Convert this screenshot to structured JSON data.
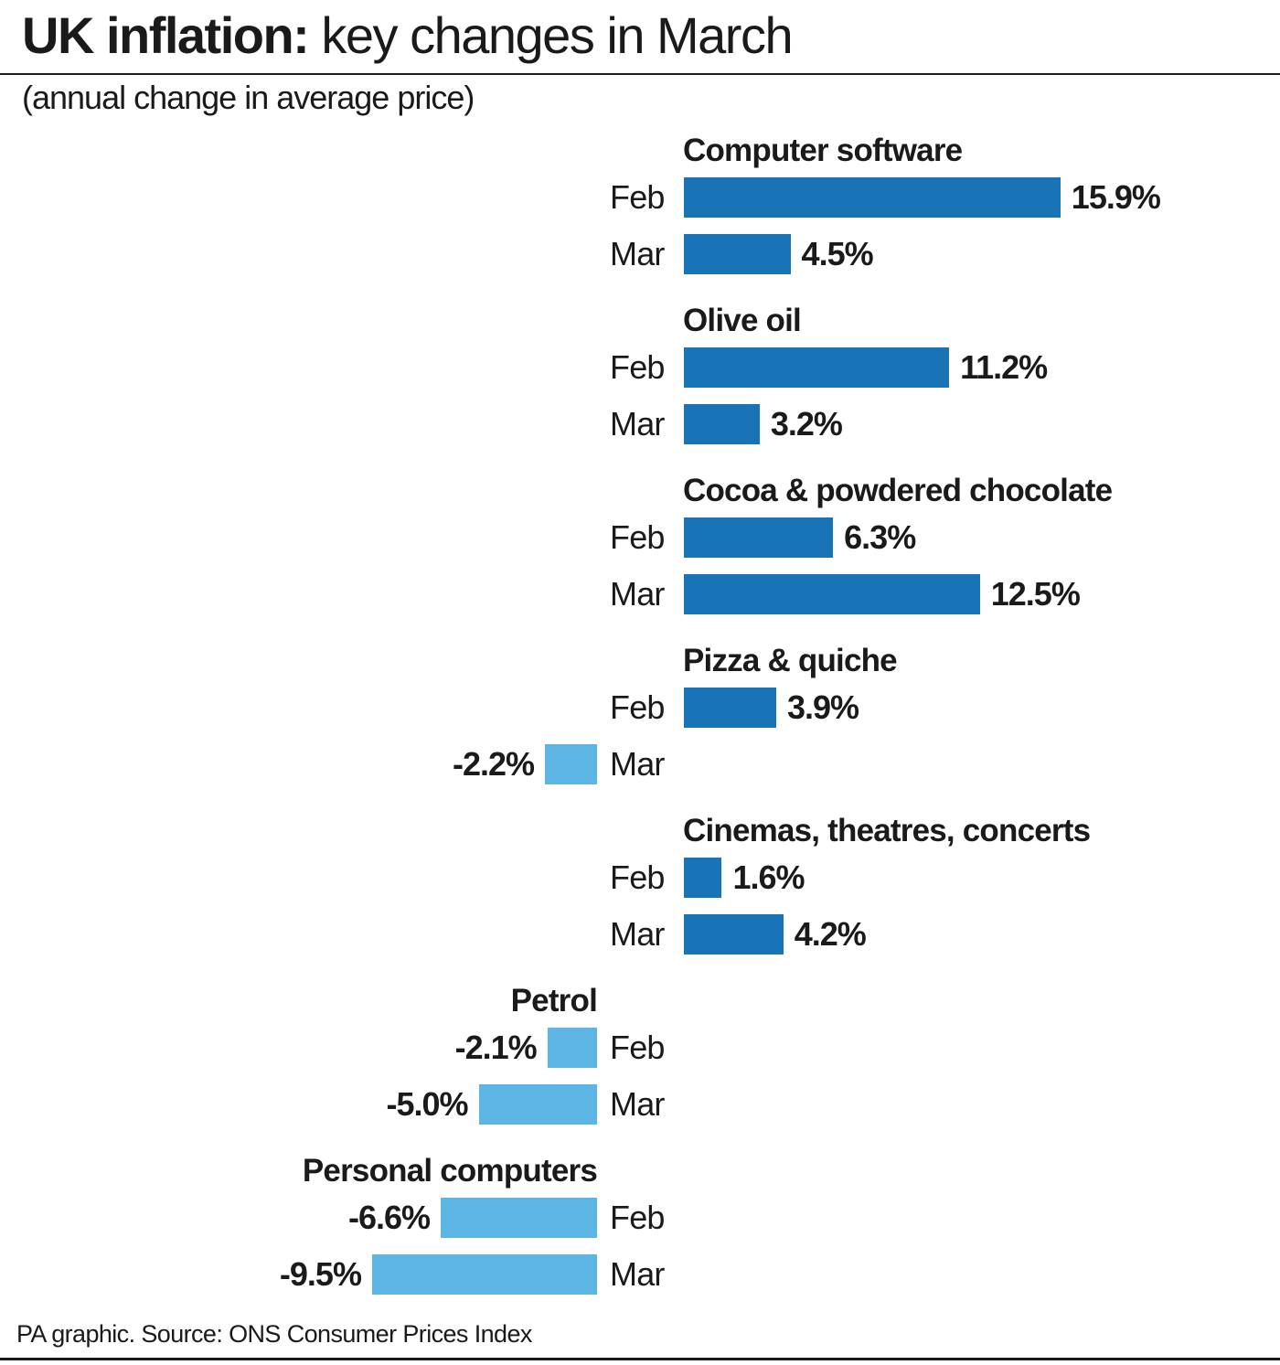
{
  "title_bold": "UK inflation:",
  "title_rest": " key changes in March",
  "subtitle": "(annual change in average price)",
  "footer": "PA graphic. Source: ONS Consumer Prices Index",
  "colors": {
    "positive": "#1874b7",
    "negative": "#5cb5e2"
  },
  "chart_data": {
    "type": "bar",
    "orientation": "horizontal",
    "unit": "%",
    "months": [
      "Feb",
      "Mar"
    ],
    "groups": [
      {
        "category": "Computer software",
        "values": [
          15.9,
          4.5
        ],
        "labels": [
          "15.9%",
          "4.5%"
        ]
      },
      {
        "category": "Olive oil",
        "values": [
          11.2,
          3.2
        ],
        "labels": [
          "11.2%",
          "3.2%"
        ]
      },
      {
        "category": "Cocoa & powdered chocolate",
        "values": [
          6.3,
          12.5
        ],
        "labels": [
          "6.3%",
          "12.5%"
        ]
      },
      {
        "category": "Pizza & quiche",
        "values": [
          3.9,
          -2.2
        ],
        "labels": [
          "3.9%",
          "-2.2%"
        ]
      },
      {
        "category": "Cinemas, theatres, concerts",
        "values": [
          1.6,
          4.2
        ],
        "labels": [
          "1.6%",
          "4.2%"
        ]
      },
      {
        "category": "Petrol",
        "values": [
          -2.1,
          -5.0
        ],
        "labels": [
          "-2.1%",
          "-5.0%"
        ]
      },
      {
        "category": "Personal computers",
        "values": [
          -6.6,
          -9.5
        ],
        "labels": [
          "-6.6%",
          "-9.5%"
        ]
      }
    ]
  }
}
